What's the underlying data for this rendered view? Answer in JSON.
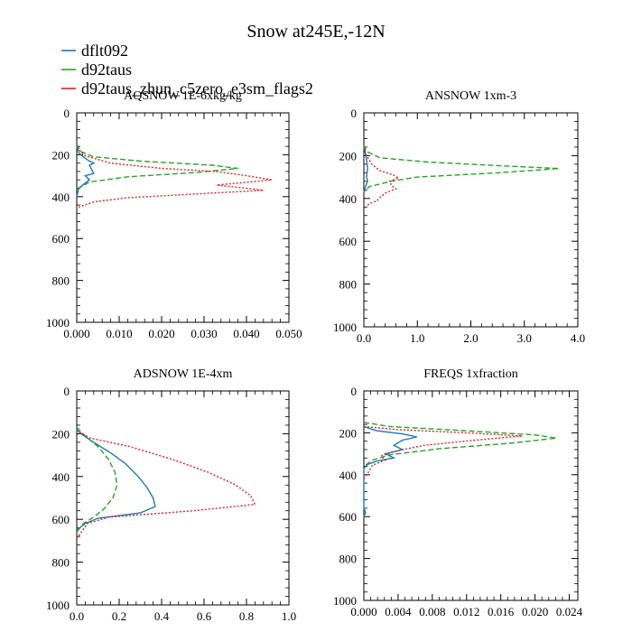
{
  "title": "Snow at245E,-12N",
  "colors": {
    "dflt092": "#1f77b4",
    "d92taus": "#2ca02c",
    "d92taus_zhun_c5zero_e3sm_flags2": "#d62728"
  },
  "legend": [
    {
      "label": "dflt092",
      "color": "#1f77b4"
    },
    {
      "label": "d92taus",
      "color": "#2ca02c"
    },
    {
      "label": "d92taus_zhun_c5zero_e3sm_flags2",
      "color": "#d62728"
    }
  ],
  "chart_data": [
    {
      "type": "line",
      "title": "AQSNOW  1E-6xkg/kg",
      "xlim": [
        0,
        0.05
      ],
      "ylim": [
        1000,
        0
      ],
      "xticks": [
        0,
        0.01,
        0.02,
        0.03,
        0.04,
        0.05
      ],
      "xtick_labels": [
        "0.000",
        "0.010",
        "0.020",
        "0.030",
        "0.040",
        "0.050"
      ],
      "yticks": [
        0,
        200,
        400,
        600,
        800,
        1000
      ],
      "ytick_labels": [
        "0",
        "200",
        "400",
        "600",
        "800",
        "1000"
      ],
      "series": [
        {
          "name": "dflt092",
          "style": "solid",
          "points": [
            [
              0,
              160
            ],
            [
              0.0005,
              190
            ],
            [
              0.0015,
              210
            ],
            [
              0.003,
              230
            ],
            [
              0.004,
              240
            ],
            [
              0.003,
              250
            ],
            [
              0.004,
              290
            ],
            [
              0.002,
              300
            ],
            [
              0.003,
              320
            ],
            [
              0.002,
              335
            ],
            [
              0.0005,
              360
            ],
            [
              0,
              400
            ]
          ]
        },
        {
          "name": "d92taus",
          "style": "dashed",
          "points": [
            [
              0,
              150
            ],
            [
              0.001,
              185
            ],
            [
              0.004,
              210
            ],
            [
              0.015,
              230
            ],
            [
              0.032,
              250
            ],
            [
              0.038,
              265
            ],
            [
              0.028,
              285
            ],
            [
              0.012,
              305
            ],
            [
              0.003,
              330
            ],
            [
              0.0005,
              360
            ],
            [
              0,
              380
            ]
          ]
        },
        {
          "name": "d92taus_zhun_c5zero_e3sm_flags2",
          "style": "dotted",
          "points": [
            [
              0,
              165
            ],
            [
              0.002,
              205
            ],
            [
              0.008,
              240
            ],
            [
              0.02,
              265
            ],
            [
              0.033,
              280
            ],
            [
              0.04,
              300
            ],
            [
              0.046,
              320
            ],
            [
              0.038,
              335
            ],
            [
              0.033,
              345
            ],
            [
              0.04,
              360
            ],
            [
              0.044,
              370
            ],
            [
              0.03,
              385
            ],
            [
              0.012,
              405
            ],
            [
              0.004,
              425
            ],
            [
              0.0005,
              450
            ],
            [
              0,
              460
            ]
          ]
        }
      ]
    },
    {
      "type": "line",
      "title": "ANSNOW  1xm-3",
      "xlim": [
        0,
        4
      ],
      "ylim": [
        1000,
        0
      ],
      "xticks": [
        0,
        1,
        2,
        3,
        4
      ],
      "xtick_labels": [
        "0.0",
        "1.0",
        "2.0",
        "3.0",
        "4.0"
      ],
      "yticks": [
        0,
        200,
        400,
        600,
        800,
        1000
      ],
      "ytick_labels": [
        "0",
        "200",
        "400",
        "600",
        "800",
        "1000"
      ],
      "series": [
        {
          "name": "dflt092",
          "style": "solid",
          "points": [
            [
              0,
              160
            ],
            [
              0.03,
              190
            ],
            [
              0.05,
              220
            ],
            [
              0.07,
              260
            ],
            [
              0.05,
              300
            ],
            [
              0.07,
              320
            ],
            [
              0.03,
              345
            ],
            [
              0,
              370
            ]
          ]
        },
        {
          "name": "d92taus",
          "style": "dashed",
          "points": [
            [
              0,
              150
            ],
            [
              0.05,
              180
            ],
            [
              0.3,
              210
            ],
            [
              1.2,
              230
            ],
            [
              2.8,
              250
            ],
            [
              3.65,
              260
            ],
            [
              2.5,
              280
            ],
            [
              1.0,
              300
            ],
            [
              0.5,
              320
            ],
            [
              0.1,
              345
            ],
            [
              0,
              370
            ]
          ]
        },
        {
          "name": "d92taus_zhun_c5zero_e3sm_flags2",
          "style": "dotted",
          "points": [
            [
              0,
              160
            ],
            [
              0.05,
              200
            ],
            [
              0.15,
              240
            ],
            [
              0.3,
              270
            ],
            [
              0.55,
              290
            ],
            [
              0.65,
              305
            ],
            [
              0.48,
              320
            ],
            [
              0.52,
              340
            ],
            [
              0.6,
              355
            ],
            [
              0.4,
              375
            ],
            [
              0.3,
              395
            ],
            [
              0.25,
              410
            ],
            [
              0.1,
              425
            ],
            [
              0,
              450
            ]
          ]
        }
      ]
    },
    {
      "type": "line",
      "title": "ADSNOW  1E-4xm",
      "xlim": [
        0,
        1
      ],
      "ylim": [
        1000,
        0
      ],
      "xticks": [
        0,
        0.2,
        0.4,
        0.6,
        0.8,
        1.0
      ],
      "xtick_labels": [
        "0.0",
        "0.2",
        "0.4",
        "0.6",
        "0.8",
        "1.0"
      ],
      "yticks": [
        0,
        200,
        400,
        600,
        800,
        1000
      ],
      "ytick_labels": [
        "0",
        "200",
        "400",
        "600",
        "800",
        "1000"
      ],
      "series": [
        {
          "name": "dflt092",
          "style": "solid",
          "points": [
            [
              0,
              180
            ],
            [
              0.02,
              200
            ],
            [
              0.08,
              240
            ],
            [
              0.16,
              290
            ],
            [
              0.23,
              340
            ],
            [
              0.29,
              400
            ],
            [
              0.33,
              450
            ],
            [
              0.36,
              500
            ],
            [
              0.37,
              540
            ],
            [
              0.3,
              570
            ],
            [
              0.1,
              595
            ],
            [
              0.04,
              620
            ],
            [
              0,
              650
            ]
          ]
        },
        {
          "name": "d92taus",
          "style": "dashed",
          "points": [
            [
              0,
              170
            ],
            [
              0.04,
              210
            ],
            [
              0.1,
              260
            ],
            [
              0.15,
              320
            ],
            [
              0.18,
              380
            ],
            [
              0.19,
              440
            ],
            [
              0.17,
              500
            ],
            [
              0.13,
              550
            ],
            [
              0.08,
              590
            ],
            [
              0.03,
              620
            ],
            [
              0,
              660
            ]
          ]
        },
        {
          "name": "d92taus_zhun_c5zero_e3sm_flags2",
          "style": "dotted",
          "points": [
            [
              0,
              185
            ],
            [
              0.06,
              220
            ],
            [
              0.25,
              260
            ],
            [
              0.45,
              320
            ],
            [
              0.62,
              380
            ],
            [
              0.75,
              440
            ],
            [
              0.82,
              490
            ],
            [
              0.84,
              530
            ],
            [
              0.55,
              560
            ],
            [
              0.15,
              590
            ],
            [
              0.05,
              620
            ],
            [
              0,
              690
            ]
          ]
        }
      ]
    },
    {
      "type": "line",
      "title": "FREQS  1xfraction",
      "xlim": [
        0,
        0.025
      ],
      "ylim": [
        1000,
        0
      ],
      "xticks": [
        0,
        0.004,
        0.008,
        0.012,
        0.016,
        0.02,
        0.024
      ],
      "xtick_labels": [
        "0.000",
        "0.004",
        "0.008",
        "0.012",
        "0.016",
        "0.020",
        "0.024"
      ],
      "yticks": [
        0,
        200,
        400,
        600,
        800,
        1000
      ],
      "ytick_labels": [
        "0",
        "200",
        "400",
        "600",
        "800",
        "1000"
      ],
      "series": [
        {
          "name": "dflt092",
          "style": "solid",
          "points": [
            [
              0,
              170
            ],
            [
              0.0015,
              190
            ],
            [
              0.0045,
              205
            ],
            [
              0.0062,
              220
            ],
            [
              0.0045,
              235
            ],
            [
              0.0035,
              260
            ],
            [
              0.0045,
              280
            ],
            [
              0.0025,
              300
            ],
            [
              0.0035,
              320
            ],
            [
              0.0015,
              335
            ],
            [
              0.0005,
              350
            ],
            [
              0,
              370
            ],
            [
              0,
              560
            ],
            [
              0.0002,
              580
            ],
            [
              0,
              600
            ]
          ]
        },
        {
          "name": "d92taus",
          "style": "dashed",
          "points": [
            [
              0,
              150
            ],
            [
              0.003,
              170
            ],
            [
              0.012,
              190
            ],
            [
              0.02,
              210
            ],
            [
              0.0225,
              225
            ],
            [
              0.017,
              250
            ],
            [
              0.009,
              275
            ],
            [
              0.003,
              305
            ],
            [
              0.001,
              330
            ],
            [
              0,
              360
            ]
          ]
        },
        {
          "name": "d92taus_zhun_c5zero_e3sm_flags2",
          "style": "dotted",
          "points": [
            [
              0,
              170
            ],
            [
              0.004,
              185
            ],
            [
              0.012,
              200
            ],
            [
              0.0185,
              215
            ],
            [
              0.013,
              235
            ],
            [
              0.007,
              260
            ],
            [
              0.004,
              285
            ],
            [
              0.002,
              310
            ],
            [
              0.0025,
              330
            ],
            [
              0.001,
              355
            ],
            [
              0.0005,
              390
            ],
            [
              0,
              420
            ]
          ]
        }
      ]
    }
  ]
}
